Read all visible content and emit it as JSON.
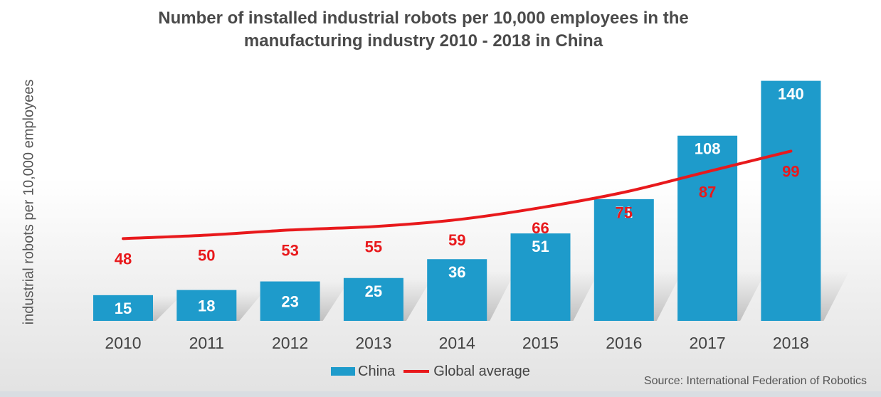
{
  "chart_data": {
    "type": "bar",
    "title": "Number of installed industrial robots per 10,000 employees in the manufacturing industry 2010 - 2018 in China",
    "title_lines": [
      "Number of installed industrial robots per 10,000 employees in the",
      "manufacturing industry 2010 - 2018 in China"
    ],
    "xlabel": "",
    "ylabel": "industrial robots per 10,000 employees",
    "categories": [
      "2010",
      "2011",
      "2012",
      "2013",
      "2014",
      "2015",
      "2016",
      "2017",
      "2018"
    ],
    "ylim": [
      0,
      150
    ],
    "grid": false,
    "legend_position": "bottom-center",
    "series": [
      {
        "name": "China",
        "type": "bar",
        "color": "#1e9bcb",
        "values": [
          15,
          18,
          23,
          25,
          36,
          51,
          71,
          108,
          140
        ]
      },
      {
        "name": "Global average",
        "type": "line",
        "color": "#e8191c",
        "values": [
          48,
          50,
          53,
          55,
          59,
          66,
          75,
          87,
          99
        ]
      }
    ]
  },
  "source": "Source: International Federation of Robotics"
}
